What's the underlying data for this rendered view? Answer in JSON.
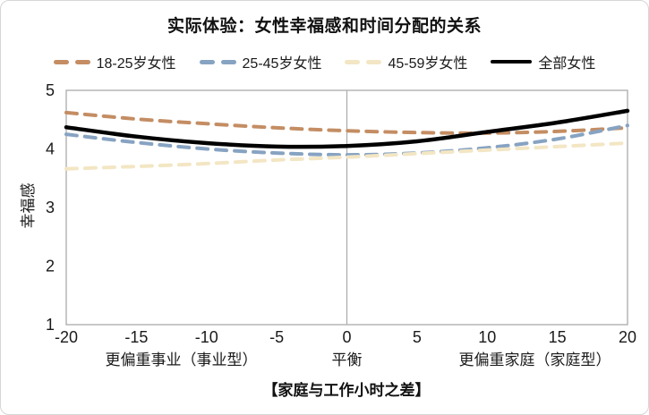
{
  "title": "实际体验：女性幸福感和时间分配的关系",
  "chart_data": {
    "type": "line",
    "title": "实际体验：女性幸福感和时间分配的关系",
    "x": [
      -20,
      -15,
      -10,
      -5,
      0,
      5,
      10,
      15,
      20
    ],
    "series": [
      {
        "name": "18-25岁女性",
        "color": "#C48D63",
        "style": "dashed",
        "values": [
          4.62,
          4.51,
          4.43,
          4.36,
          4.31,
          4.28,
          4.27,
          4.3,
          4.36
        ]
      },
      {
        "name": "25-45岁女性",
        "color": "#87A3C2",
        "style": "dashed",
        "values": [
          4.25,
          4.11,
          4.0,
          3.93,
          3.9,
          3.93,
          4.02,
          4.17,
          4.4
        ]
      },
      {
        "name": "45-59岁女性",
        "color": "#F3E6C4",
        "style": "dashed",
        "values": [
          3.66,
          3.7,
          3.75,
          3.81,
          3.86,
          3.92,
          3.98,
          4.04,
          4.1
        ]
      },
      {
        "name": "全部女性",
        "color": "#000000",
        "style": "solid",
        "values": [
          4.37,
          4.21,
          4.1,
          4.04,
          4.05,
          4.13,
          4.29,
          4.45,
          4.65
        ]
      }
    ],
    "xlabel": "【家庭与工作小时之差】",
    "ylabel": "幸福感",
    "xlim": [
      -20,
      20
    ],
    "ylim": [
      1,
      5
    ],
    "x_ticks": [
      -20,
      -15,
      -10,
      -5,
      0,
      5,
      10,
      15,
      20
    ],
    "y_ticks": [
      5,
      4,
      3,
      2,
      1
    ],
    "zone_labels": [
      {
        "text": "更偏重事业（事业型）",
        "x": -11.8
      },
      {
        "text": "平衡",
        "x": 0
      },
      {
        "text": "更偏重家庭（家庭型）",
        "x": 13.4
      }
    ],
    "vertical_gridline_x": 0,
    "legend_position": "top",
    "grid": "none (single vertical reference line at x=0)"
  },
  "colors": {
    "plot_border": "#ABABAB",
    "gridline": "#ABABAB",
    "tick_text": "#1A1A1A",
    "frame_border": "#D6D6D6"
  }
}
